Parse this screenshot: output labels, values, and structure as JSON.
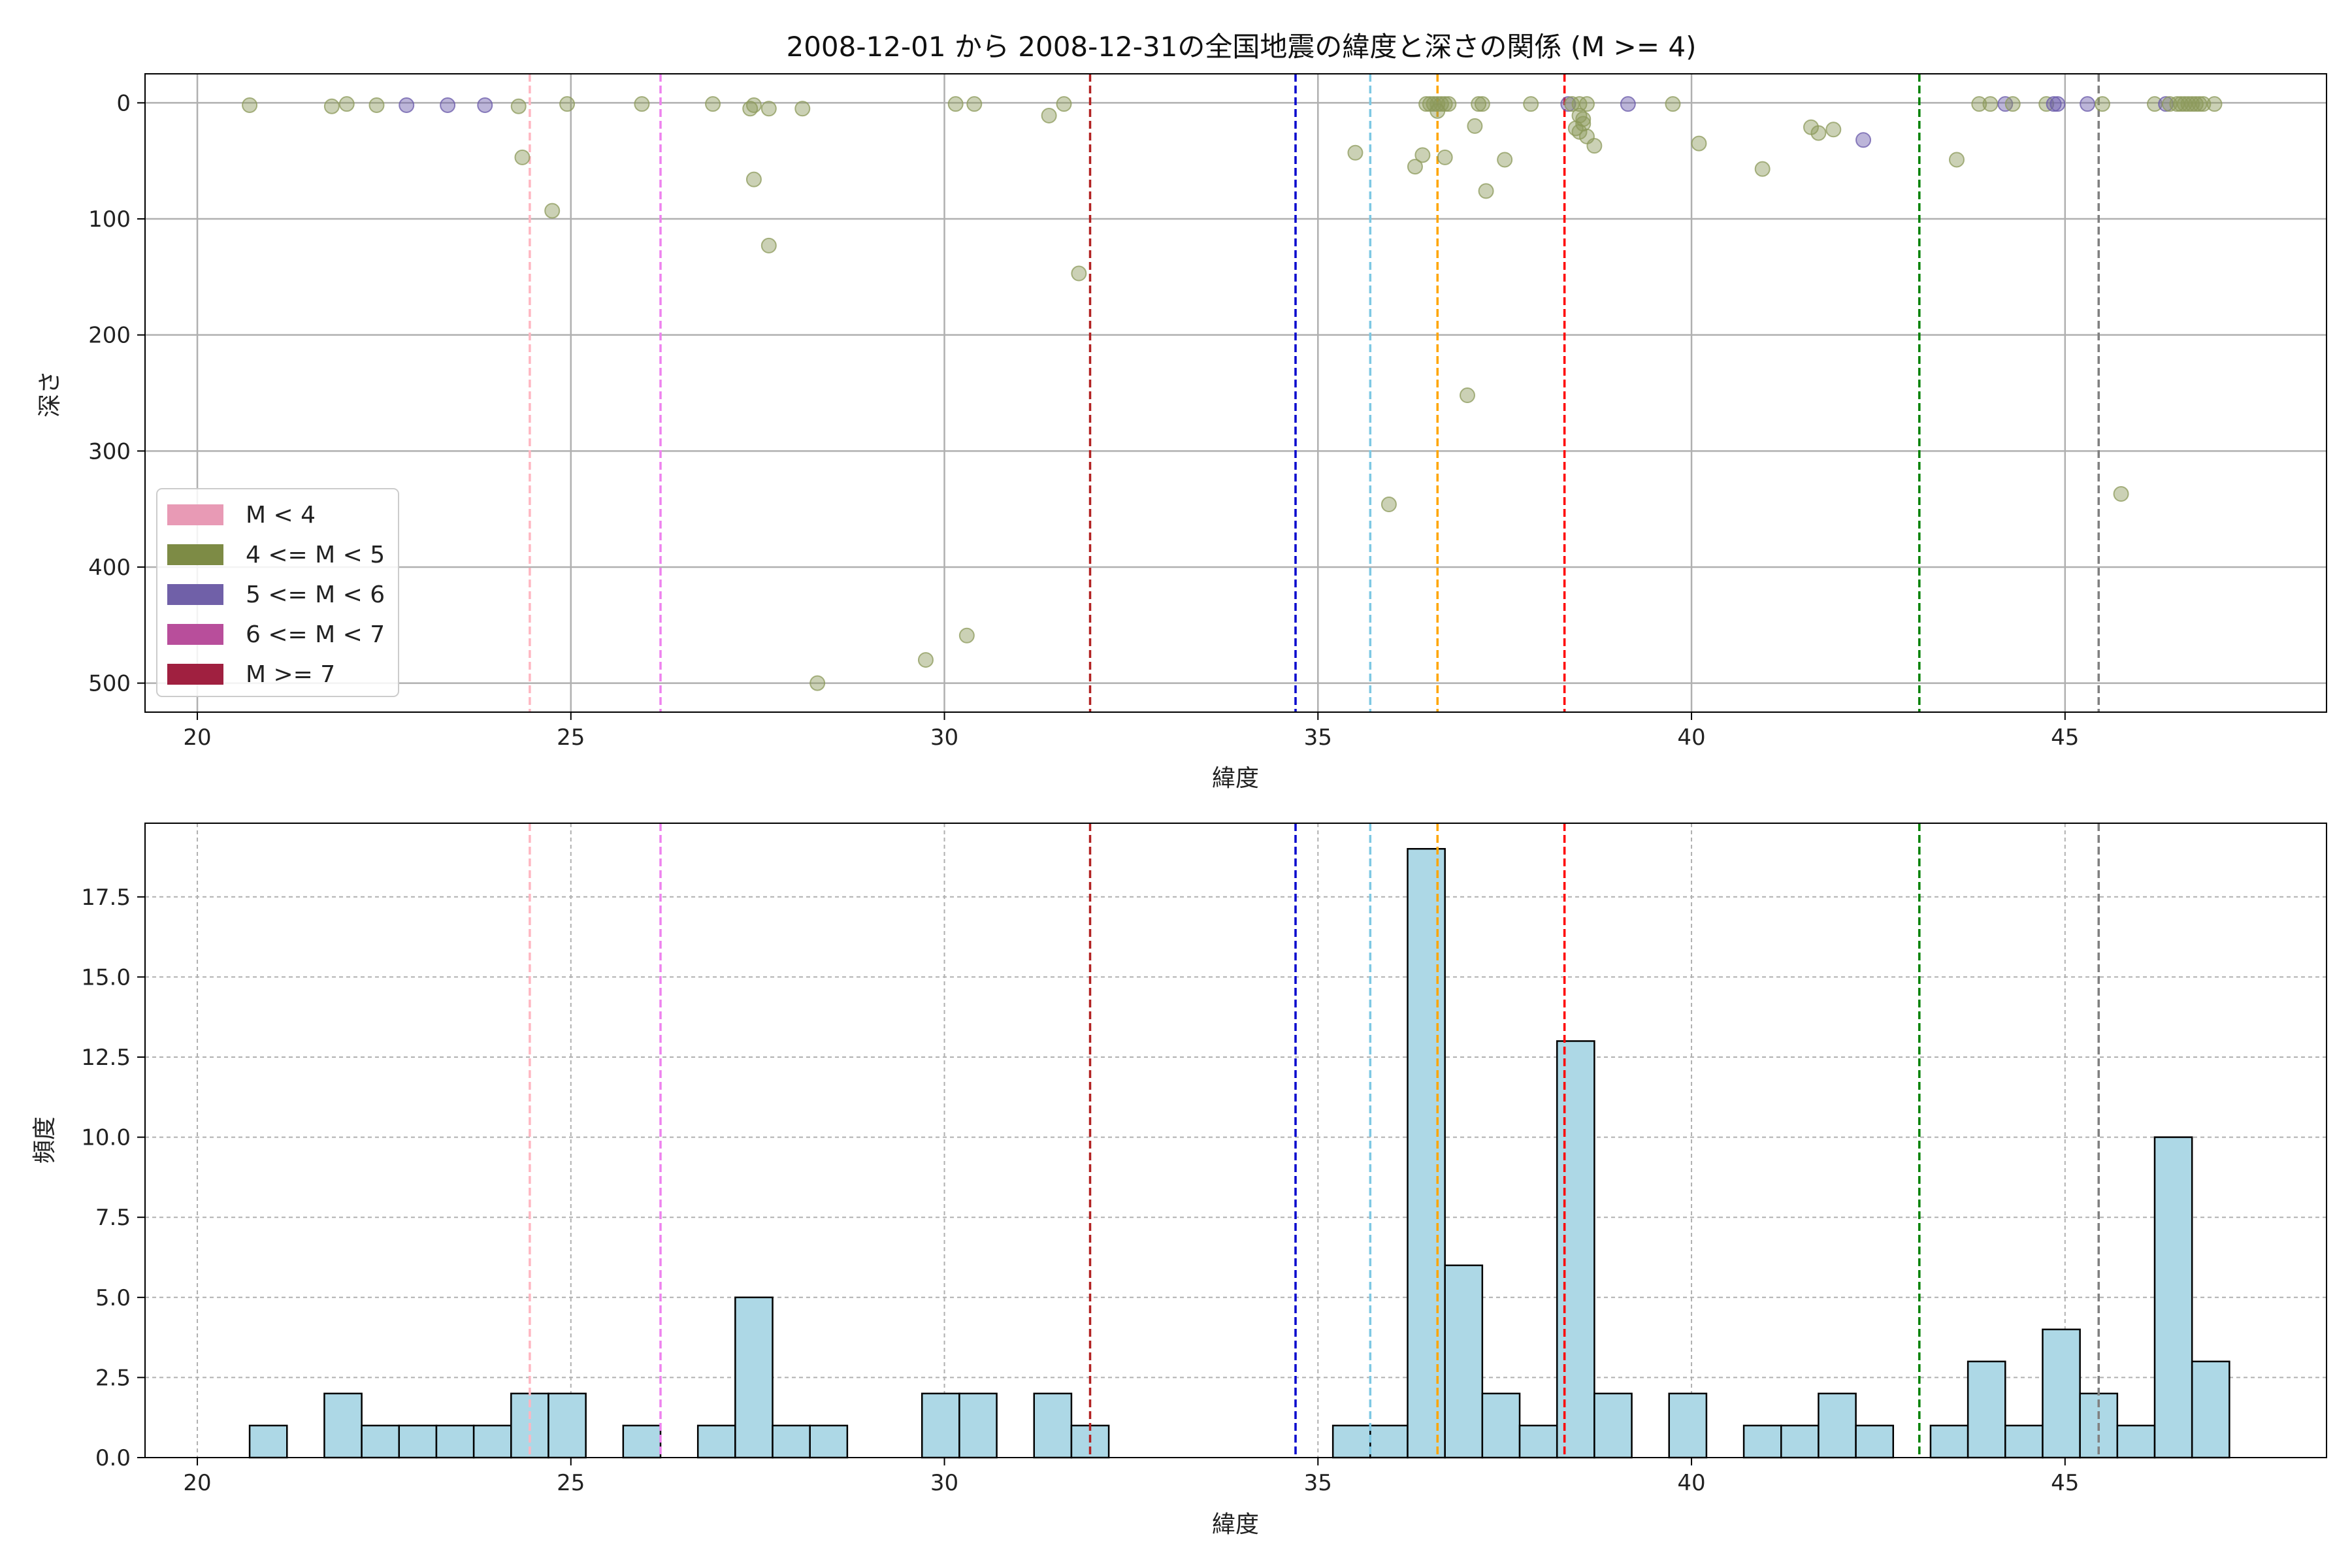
{
  "title": "2008-12-01 から 2008-12-31の全国地震の緯度と深さの関係 (M >= 4)",
  "colors": {
    "scatter_fill": "#8c9a5b",
    "scatter_purple": "#6a5aaa",
    "hist_fill": "#add8e6",
    "hist_edge": "#000000",
    "grid": "#b0b0b0"
  },
  "chart_data": [
    {
      "type": "scatter",
      "xlabel": "緯度",
      "ylabel": "深さ",
      "xlim": [
        19.3,
        48.5
      ],
      "ylim": [
        525,
        -25
      ],
      "y_inverted": true,
      "xticks": [
        20,
        25,
        30,
        35,
        40,
        45
      ],
      "yticks": [
        0,
        100,
        200,
        300,
        400,
        500
      ],
      "grid": true,
      "legend_position": "lower-left",
      "legend": [
        {
          "label": "M < 4",
          "color": "#e89ab5"
        },
        {
          "label": "4 <= M < 5",
          "color": "#7d8b45"
        },
        {
          "label": "5 <= M < 6",
          "color": "#7060a8"
        },
        {
          "label": "6 <= M < 7",
          "color": "#b84e9b"
        },
        {
          "label": "M >= 7",
          "color": "#a02040"
        }
      ],
      "vlines": [
        {
          "x": 24.45,
          "color": "#ffb6c1"
        },
        {
          "x": 26.2,
          "color": "#ee82ee"
        },
        {
          "x": 31.95,
          "color": "#b22222"
        },
        {
          "x": 34.7,
          "color": "#0000cd"
        },
        {
          "x": 35.7,
          "color": "#7ec8e3"
        },
        {
          "x": 36.6,
          "color": "#ffa500"
        },
        {
          "x": 38.3,
          "color": "#ff0000"
        },
        {
          "x": 43.05,
          "color": "#008000"
        },
        {
          "x": 45.45,
          "color": "#808080"
        }
      ],
      "points": [
        [
          20.7,
          2,
          4
        ],
        [
          21.8,
          3,
          4
        ],
        [
          22.0,
          1,
          4
        ],
        [
          22.4,
          2,
          4
        ],
        [
          22.8,
          2,
          5
        ],
        [
          23.35,
          2,
          5
        ],
        [
          23.85,
          2,
          5
        ],
        [
          24.3,
          3,
          4
        ],
        [
          24.35,
          47,
          4
        ],
        [
          24.75,
          93,
          4
        ],
        [
          24.95,
          1,
          4
        ],
        [
          25.95,
          1,
          4
        ],
        [
          26.9,
          1,
          4
        ],
        [
          27.4,
          5,
          4
        ],
        [
          27.45,
          2,
          4
        ],
        [
          27.45,
          66,
          4
        ],
        [
          27.65,
          5,
          4
        ],
        [
          27.65,
          123,
          4
        ],
        [
          28.1,
          5,
          4
        ],
        [
          28.3,
          500,
          4
        ],
        [
          29.75,
          480,
          4
        ],
        [
          30.15,
          1,
          4
        ],
        [
          30.3,
          459,
          4
        ],
        [
          30.4,
          1,
          4
        ],
        [
          31.4,
          11,
          4
        ],
        [
          31.6,
          1,
          4
        ],
        [
          31.8,
          147,
          4
        ],
        [
          35.5,
          43,
          4
        ],
        [
          35.95,
          346,
          4
        ],
        [
          36.3,
          55,
          4
        ],
        [
          36.4,
          45,
          4
        ],
        [
          36.45,
          1,
          4
        ],
        [
          36.5,
          1,
          4
        ],
        [
          36.55,
          1,
          4
        ],
        [
          36.6,
          1,
          4
        ],
        [
          36.6,
          7,
          4
        ],
        [
          36.65,
          1,
          4
        ],
        [
          36.7,
          1,
          4
        ],
        [
          36.7,
          47,
          4
        ],
        [
          36.75,
          1,
          4
        ],
        [
          37.0,
          252,
          4
        ],
        [
          37.1,
          20,
          4
        ],
        [
          37.15,
          1,
          4
        ],
        [
          37.2,
          1,
          4
        ],
        [
          37.25,
          76,
          4
        ],
        [
          37.5,
          49,
          4
        ],
        [
          37.85,
          1,
          4
        ],
        [
          38.35,
          1,
          5
        ],
        [
          38.4,
          1,
          4
        ],
        [
          38.45,
          22,
          4
        ],
        [
          38.5,
          1,
          4
        ],
        [
          38.5,
          11,
          4
        ],
        [
          38.5,
          25,
          4
        ],
        [
          38.55,
          18,
          4
        ],
        [
          38.55,
          14,
          4
        ],
        [
          38.6,
          1,
          4
        ],
        [
          38.6,
          29,
          4
        ],
        [
          38.7,
          37,
          4
        ],
        [
          39.15,
          1,
          5
        ],
        [
          39.75,
          1,
          4
        ],
        [
          40.1,
          35,
          4
        ],
        [
          40.95,
          57,
          4
        ],
        [
          41.6,
          21,
          4
        ],
        [
          41.7,
          26,
          4
        ],
        [
          41.9,
          23,
          4
        ],
        [
          42.3,
          32,
          5
        ],
        [
          43.55,
          49,
          4
        ],
        [
          43.85,
          1,
          4
        ],
        [
          44.0,
          1,
          4
        ],
        [
          44.2,
          1,
          5
        ],
        [
          44.3,
          1,
          4
        ],
        [
          44.75,
          1,
          4
        ],
        [
          44.85,
          1,
          5
        ],
        [
          44.9,
          1,
          5
        ],
        [
          45.3,
          1,
          5
        ],
        [
          45.5,
          1,
          4
        ],
        [
          45.75,
          337,
          4
        ],
        [
          46.2,
          1,
          4
        ],
        [
          46.35,
          1,
          5
        ],
        [
          46.4,
          1,
          4
        ],
        [
          46.5,
          1,
          4
        ],
        [
          46.55,
          1,
          4
        ],
        [
          46.6,
          1,
          4
        ],
        [
          46.65,
          1,
          4
        ],
        [
          46.7,
          1,
          4
        ],
        [
          46.75,
          1,
          4
        ],
        [
          46.8,
          1,
          4
        ],
        [
          46.85,
          1,
          4
        ],
        [
          47.0,
          1,
          4
        ]
      ]
    },
    {
      "type": "bar",
      "subtype": "histogram",
      "xlabel": "緯度",
      "ylabel": "頻度",
      "xlim": [
        19.3,
        48.5
      ],
      "ylim": [
        0,
        19.8
      ],
      "xticks": [
        20,
        25,
        30,
        35,
        40,
        45
      ],
      "yticks": [
        0.0,
        2.5,
        5.0,
        7.5,
        10.0,
        12.5,
        15.0,
        17.5
      ],
      "grid": true,
      "bin_start": 20.7,
      "bin_width": 0.5,
      "values": [
        1,
        0,
        2,
        1,
        1,
        1,
        1,
        2,
        2,
        0,
        1,
        0,
        1,
        5,
        1,
        1,
        0,
        0,
        2,
        2,
        0,
        2,
        1,
        0,
        0,
        0,
        0,
        0,
        0,
        1,
        1,
        19,
        6,
        2,
        1,
        13,
        2,
        0,
        2,
        0,
        1,
        1,
        2,
        1,
        0,
        1,
        3,
        1,
        4,
        2,
        1,
        10,
        3
      ],
      "vlines": [
        {
          "x": 24.45,
          "color": "#ffb6c1"
        },
        {
          "x": 26.2,
          "color": "#ee82ee"
        },
        {
          "x": 31.95,
          "color": "#b22222"
        },
        {
          "x": 34.7,
          "color": "#0000cd"
        },
        {
          "x": 35.7,
          "color": "#7ec8e3"
        },
        {
          "x": 36.6,
          "color": "#ffa500"
        },
        {
          "x": 38.3,
          "color": "#ff0000"
        },
        {
          "x": 43.05,
          "color": "#008000"
        },
        {
          "x": 45.45,
          "color": "#808080"
        }
      ]
    }
  ]
}
